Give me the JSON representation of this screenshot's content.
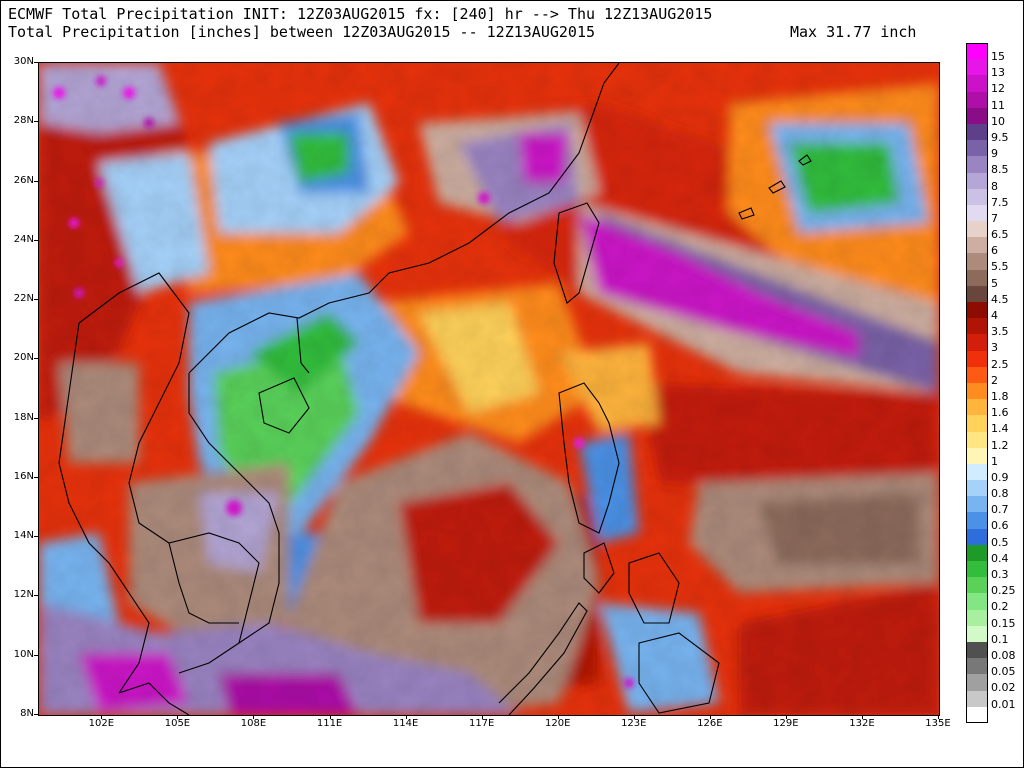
{
  "header": {
    "line1": "ECMWF Total Precipitation INIT: 12Z03AUG2015 fx: [240] hr --> Thu 12Z13AUG2015",
    "line2": "Total Precipitation [inches] between 12Z03AUG2015 -- 12Z13AUG2015",
    "max_label": "Max 31.77 inch"
  },
  "map": {
    "lat_labels": [
      "30N",
      "28N",
      "26N",
      "24N",
      "22N",
      "20N",
      "18N",
      "16N",
      "14N",
      "12N",
      "10N",
      "8N"
    ],
    "lon_labels": [
      "102E",
      "105E",
      "108E",
      "111E",
      "114E",
      "117E",
      "120E",
      "123E",
      "126E",
      "129E",
      "132E",
      "135E"
    ],
    "lat_range": [
      8,
      30
    ],
    "lon_range": [
      99.5,
      135
    ]
  },
  "legend": {
    "units": "inches",
    "items": [
      {
        "label": "15",
        "color": "#ff00ff"
      },
      {
        "label": "13",
        "color": "#e815e8"
      },
      {
        "label": "12",
        "color": "#cc12c8"
      },
      {
        "label": "11",
        "color": "#ad0fa8"
      },
      {
        "label": "10",
        "color": "#8a0c86"
      },
      {
        "label": "9.5",
        "color": "#5d3f8a"
      },
      {
        "label": "9",
        "color": "#7a62a8"
      },
      {
        "label": "8.5",
        "color": "#9a84c2"
      },
      {
        "label": "8",
        "color": "#b4a6d6"
      },
      {
        "label": "7.5",
        "color": "#cbc1e4"
      },
      {
        "label": "7",
        "color": "#e2daf0"
      },
      {
        "label": "6.5",
        "color": "#e6d2c8"
      },
      {
        "label": "6",
        "color": "#cdaea0"
      },
      {
        "label": "5.5",
        "color": "#ad8b7c"
      },
      {
        "label": "5",
        "color": "#8c6a5c"
      },
      {
        "label": "4.5",
        "color": "#68463c"
      },
      {
        "label": "4",
        "color": "#8c0c00"
      },
      {
        "label": "3.5",
        "color": "#b01405"
      },
      {
        "label": "3",
        "color": "#d21e0a"
      },
      {
        "label": "2.5",
        "color": "#f0300a"
      },
      {
        "label": "2",
        "color": "#ff5a14"
      },
      {
        "label": "1.8",
        "color": "#ff8c1e"
      },
      {
        "label": "1.6",
        "color": "#ffb43c"
      },
      {
        "label": "1.4",
        "color": "#ffd25a"
      },
      {
        "label": "1.2",
        "color": "#ffe682"
      },
      {
        "label": "1",
        "color": "#fff5b4"
      },
      {
        "label": "0.9",
        "color": "#d2ecff"
      },
      {
        "label": "0.8",
        "color": "#a6d2fa"
      },
      {
        "label": "0.7",
        "color": "#78b4f0"
      },
      {
        "label": "0.6",
        "color": "#4b91e6"
      },
      {
        "label": "0.5",
        "color": "#2d6edc"
      },
      {
        "label": "0.4",
        "color": "#1e9a28"
      },
      {
        "label": "0.3",
        "color": "#32be3c"
      },
      {
        "label": "0.25",
        "color": "#5ad25a"
      },
      {
        "label": "0.2",
        "color": "#82e682"
      },
      {
        "label": "0.15",
        "color": "#a8f0a0"
      },
      {
        "label": "0.1",
        "color": "#d2fac8"
      },
      {
        "label": "0.08",
        "color": "#505050"
      },
      {
        "label": "0.05",
        "color": "#787878"
      },
      {
        "label": "0.02",
        "color": "#a0a0a0"
      },
      {
        "label": "0.01",
        "color": "#c8c8c8"
      },
      {
        "label": "",
        "color": "#ffffff"
      }
    ]
  }
}
